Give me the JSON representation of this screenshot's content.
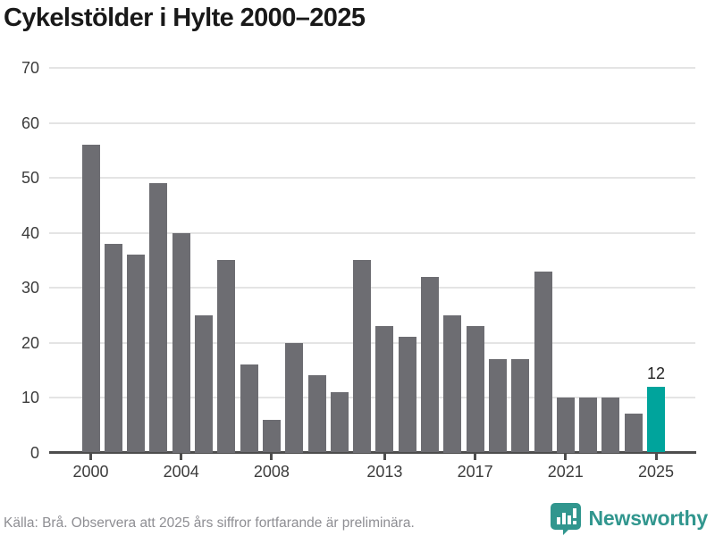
{
  "title": "Cykelstölder i Hylte 2000–2025",
  "footer": {
    "source_note": "Källa: Brå. Observera att 2025 års siffror fortfarande är preliminära."
  },
  "branding": {
    "name": "Newsworthy",
    "logo_color": "#31968e"
  },
  "colors": {
    "bar": "#6d6d72",
    "highlight_bar": "#00a49c",
    "gridline": "#e4e4e4",
    "axis": "#4d4d4d",
    "title_text": "#191919",
    "tick_text": "#3c3c3c",
    "footer_text": "#8e8e93"
  },
  "chart_data": {
    "type": "bar",
    "title": "Cykelstölder i Hylte 2000–2025",
    "categories": [
      2000,
      2001,
      2002,
      2003,
      2004,
      2005,
      2006,
      2007,
      2008,
      2009,
      2010,
      2011,
      2012,
      2013,
      2014,
      2015,
      2016,
      2017,
      2018,
      2019,
      2020,
      2021,
      2022,
      2023,
      2024,
      2025
    ],
    "values": [
      56,
      38,
      36,
      49,
      40,
      25,
      35,
      16,
      6,
      20,
      14,
      11,
      35,
      23,
      21,
      32,
      25,
      23,
      17,
      17,
      33,
      10,
      10,
      10,
      7,
      12
    ],
    "highlight_index": 25,
    "highlight_label": "12",
    "xlabel": "",
    "ylabel": "",
    "ylim": [
      0,
      70
    ],
    "yticks": [
      0,
      10,
      20,
      30,
      40,
      50,
      60,
      70
    ],
    "xtick_labels": [
      "2000",
      "2004",
      "2008",
      "2013",
      "2017",
      "2021",
      "2025"
    ],
    "grid": true,
    "legend": false
  }
}
